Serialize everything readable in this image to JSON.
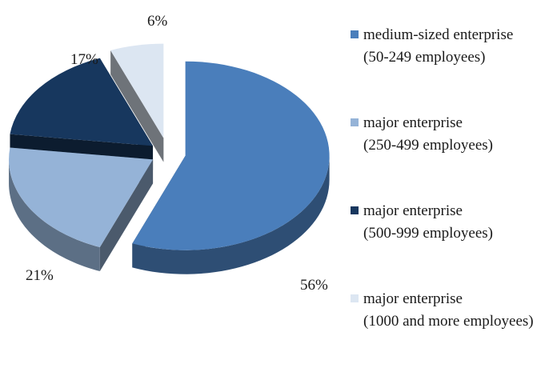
{
  "chart_data": {
    "type": "pie",
    "title": "",
    "slices": [
      {
        "legend_lines": [
          "medium-sized enterprise",
          "(50-249 employees)"
        ],
        "value": 56,
        "label": "56%",
        "color": "#4A7EBB"
      },
      {
        "legend_lines": [
          "major enterprise",
          "(250-499 employees)"
        ],
        "value": 21,
        "label": "21%",
        "color": "#95B3D7"
      },
      {
        "legend_lines": [
          "major enterprise",
          "(500-999 employees)"
        ],
        "value": 17,
        "label": "17%",
        "color": "#17375E"
      },
      {
        "legend_lines": [
          "major enterprise",
          "(1000 and more employees)"
        ],
        "value": 6,
        "label": "6%",
        "color": "#DCE6F2"
      }
    ],
    "legend_position": "right",
    "style": "3d-exploded"
  }
}
